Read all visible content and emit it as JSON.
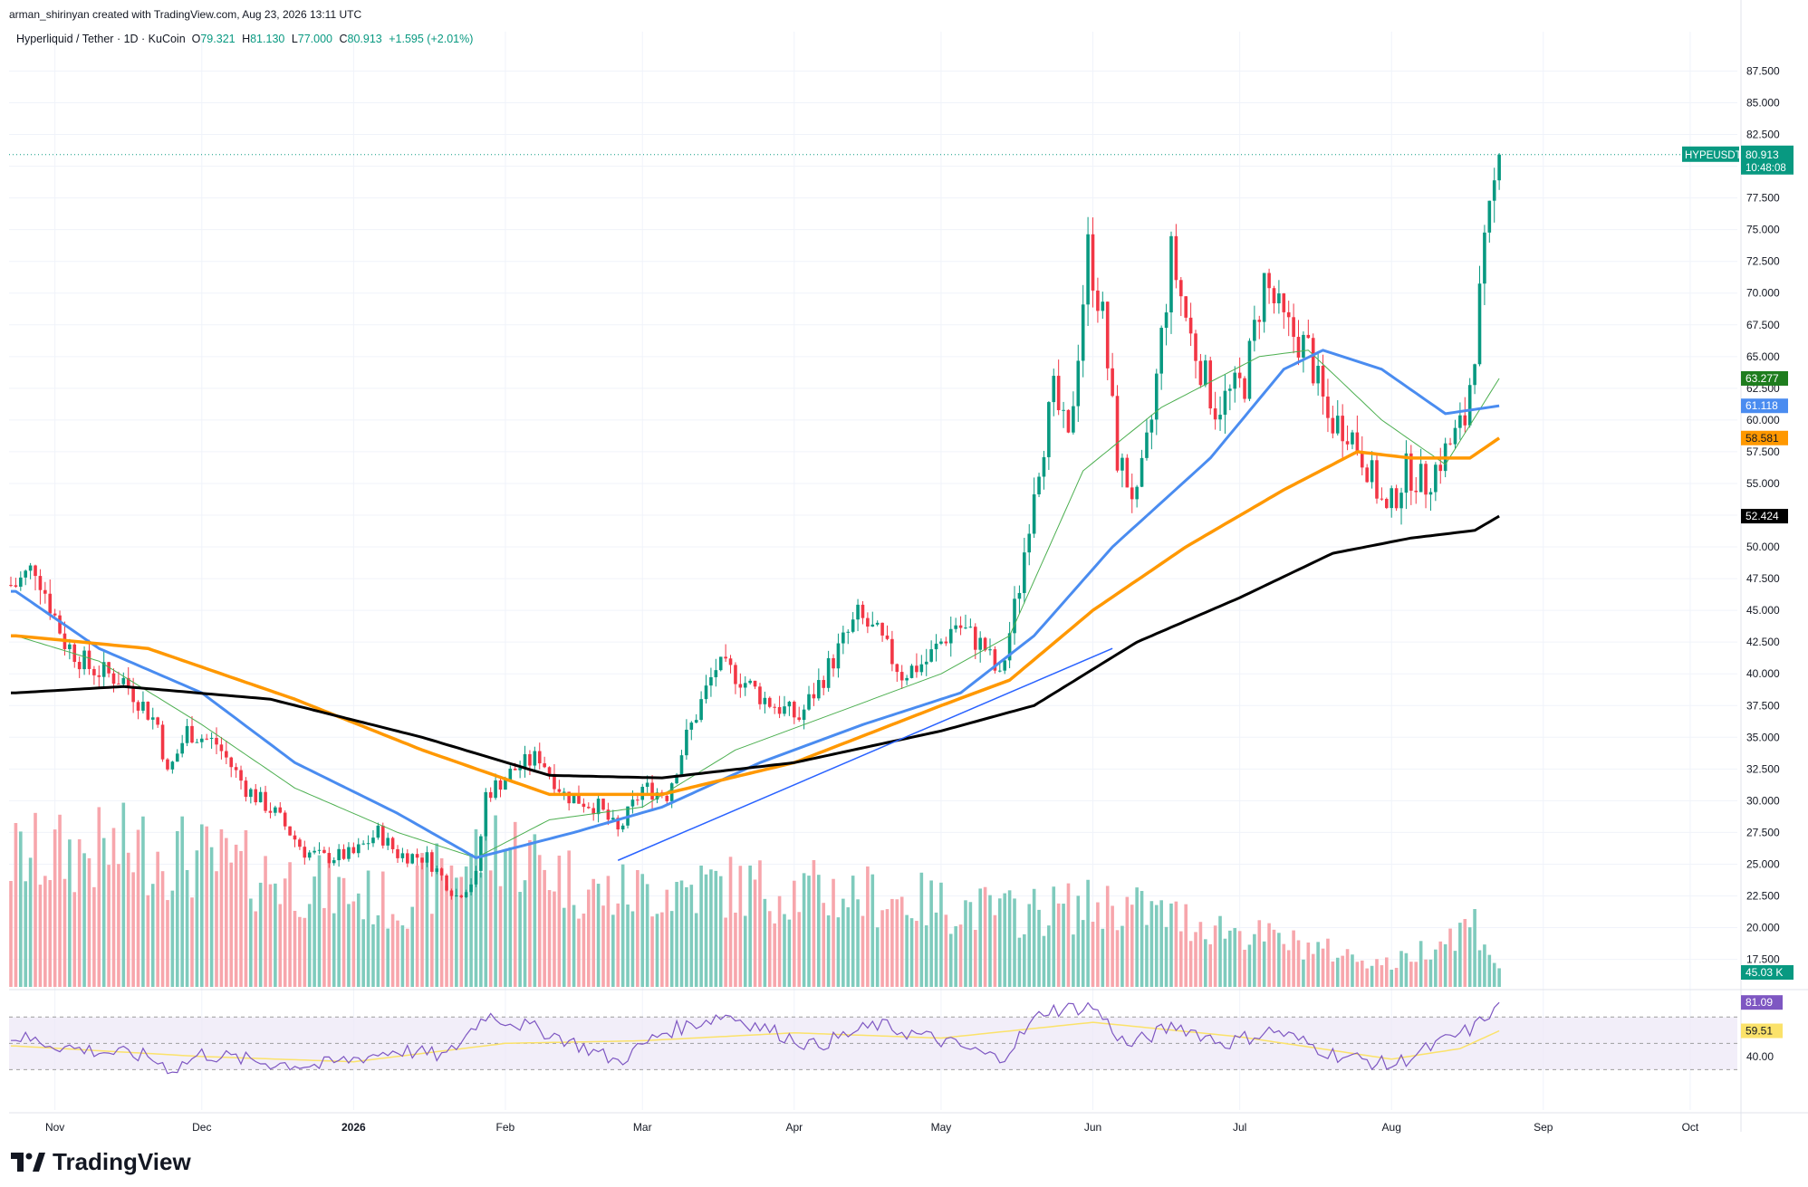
{
  "header": {
    "credit": "arman_shirinyan created with TradingView.com, Aug 23, 2026 13:11 UTC",
    "symbol_line": "Hyperliquid / Tether · 1D · KuCoin",
    "open_label": "O",
    "open": "79.321",
    "high_label": "H",
    "high": "81.130",
    "low_label": "L",
    "low": "77.000",
    "close_label": "C",
    "close": "80.913",
    "change": "+1.595 (+2.01%)"
  },
  "brand": {
    "name": "TradingView",
    "icon": "tradingview-logo-icon"
  },
  "colors": {
    "up": "#089981",
    "down": "#f23645",
    "up_vol": "#7fcbbd",
    "down_vol": "#f7a6ac",
    "ma_thin": "#4caf50",
    "ma_blue": "#4a8cf0",
    "ma_orange": "#ff9800",
    "ma_black": "#000000",
    "rsi": "#7e57c2",
    "rsi_ma": "#fbe26a",
    "trendline": "#2962ff"
  },
  "chart_data": {
    "type": "line",
    "title": "Hyperliquid / Tether · 1D · KuCoin",
    "x_ticks": [
      "Nov",
      "Dec",
      "2026",
      "Feb",
      "Mar",
      "Apr",
      "May",
      "Jun",
      "Jul",
      "Aug",
      "Sep",
      "Oct"
    ],
    "y_ticks": [
      "87.500",
      "85.000",
      "82.500",
      "80.000",
      "77.500",
      "75.000",
      "72.500",
      "70.000",
      "67.500",
      "65.000",
      "62.500",
      "60.000",
      "57.500",
      "55.000",
      "52.500",
      "50.000",
      "47.500",
      "45.000",
      "42.500",
      "40.000",
      "37.500",
      "35.000",
      "32.500",
      "30.000",
      "27.500",
      "25.000",
      "22.500",
      "20.000",
      "17.500"
    ],
    "ylim": [
      16,
      90
    ],
    "grid": true,
    "price_path": [
      {
        "x": "2025-10-24",
        "y": 47.0
      },
      {
        "x": "2025-10-28",
        "y": 48.5
      },
      {
        "x": "2025-11-03",
        "y": 42.5
      },
      {
        "x": "2025-11-08",
        "y": 40.5
      },
      {
        "x": "2025-11-15",
        "y": 39.5
      },
      {
        "x": "2025-11-22",
        "y": 36.0
      },
      {
        "x": "2025-11-24",
        "y": 32.0
      },
      {
        "x": "2025-11-28",
        "y": 35.5
      },
      {
        "x": "2025-12-04",
        "y": 34.5
      },
      {
        "x": "2025-12-10",
        "y": 31.0
      },
      {
        "x": "2025-12-16",
        "y": 29.0
      },
      {
        "x": "2025-12-22",
        "y": 26.0
      },
      {
        "x": "2025-12-26",
        "y": 25.5
      },
      {
        "x": "2026-01-01",
        "y": 25.8
      },
      {
        "x": "2026-01-06",
        "y": 27.5
      },
      {
        "x": "2026-01-10",
        "y": 25.8
      },
      {
        "x": "2026-01-16",
        "y": 25.5
      },
      {
        "x": "2026-01-22",
        "y": 22.5
      },
      {
        "x": "2026-01-26",
        "y": 24.0
      },
      {
        "x": "2026-01-28",
        "y": 30.5
      },
      {
        "x": "2026-02-03",
        "y": 32.5
      },
      {
        "x": "2026-02-08",
        "y": 33.5
      },
      {
        "x": "2026-02-13",
        "y": 30.5
      },
      {
        "x": "2026-02-20",
        "y": 29.5
      },
      {
        "x": "2026-02-24",
        "y": 27.5
      },
      {
        "x": "2026-03-01",
        "y": 31.0
      },
      {
        "x": "2026-03-06",
        "y": 30.5
      },
      {
        "x": "2026-03-10",
        "y": 35.0
      },
      {
        "x": "2026-03-16",
        "y": 40.5
      },
      {
        "x": "2026-03-20",
        "y": 40.0
      },
      {
        "x": "2026-03-26",
        "y": 38.0
      },
      {
        "x": "2026-04-02",
        "y": 36.5
      },
      {
        "x": "2026-04-08",
        "y": 40.5
      },
      {
        "x": "2026-04-14",
        "y": 44.5
      },
      {
        "x": "2026-04-18",
        "y": 43.0
      },
      {
        "x": "2026-04-23",
        "y": 40.0
      },
      {
        "x": "2026-04-28",
        "y": 41.0
      },
      {
        "x": "2026-05-04",
        "y": 44.0
      },
      {
        "x": "2026-05-10",
        "y": 42.0
      },
      {
        "x": "2026-05-13",
        "y": 39.5
      },
      {
        "x": "2026-05-17",
        "y": 47.0
      },
      {
        "x": "2026-05-20",
        "y": 55.0
      },
      {
        "x": "2026-05-24",
        "y": 62.0
      },
      {
        "x": "2026-05-27",
        "y": 58.0
      },
      {
        "x": "2026-05-31",
        "y": 73.5
      },
      {
        "x": "2026-06-03",
        "y": 68.0
      },
      {
        "x": "2026-06-06",
        "y": 57.0
      },
      {
        "x": "2026-06-10",
        "y": 53.5
      },
      {
        "x": "2026-06-13",
        "y": 60.0
      },
      {
        "x": "2026-06-17",
        "y": 73.0
      },
      {
        "x": "2026-06-21",
        "y": 66.5
      },
      {
        "x": "2026-06-26",
        "y": 61.0
      },
      {
        "x": "2026-07-02",
        "y": 63.0
      },
      {
        "x": "2026-07-06",
        "y": 71.0
      },
      {
        "x": "2026-07-10",
        "y": 67.5
      },
      {
        "x": "2026-07-15",
        "y": 65.5
      },
      {
        "x": "2026-07-19",
        "y": 60.0
      },
      {
        "x": "2026-07-23",
        "y": 59.5
      },
      {
        "x": "2026-07-27",
        "y": 56.5
      },
      {
        "x": "2026-07-31",
        "y": 52.5
      },
      {
        "x": "2026-08-04",
        "y": 56.0
      },
      {
        "x": "2026-08-08",
        "y": 55.0
      },
      {
        "x": "2026-08-12",
        "y": 57.5
      },
      {
        "x": "2026-08-16",
        "y": 60.0
      },
      {
        "x": "2026-08-18",
        "y": 66.0
      },
      {
        "x": "2026-08-20",
        "y": 73.0
      },
      {
        "x": "2026-08-23",
        "y": 80.913
      }
    ],
    "series": [
      {
        "values": [
          {
            "x": "2025-10-24",
            "y": 43.0
          },
          {
            "x": "2025-11-10",
            "y": 41.0
          },
          {
            "x": "2025-12-01",
            "y": 36.0
          },
          {
            "x": "2025-12-20",
            "y": 31.0
          },
          {
            "x": "2026-01-10",
            "y": 27.5
          },
          {
            "x": "2026-01-26",
            "y": 25.5
          },
          {
            "x": "2026-02-10",
            "y": 28.5
          },
          {
            "x": "2026-03-01",
            "y": 29.5
          },
          {
            "x": "2026-03-20",
            "y": 34.0
          },
          {
            "x": "2026-04-10",
            "y": 37.0
          },
          {
            "x": "2026-05-01",
            "y": 40.0
          },
          {
            "x": "2026-05-15",
            "y": 43.0
          },
          {
            "x": "2026-05-30",
            "y": 56.0
          },
          {
            "x": "2026-06-15",
            "y": 61.0
          },
          {
            "x": "2026-07-05",
            "y": 65.0
          },
          {
            "x": "2026-07-15",
            "y": 65.5
          },
          {
            "x": "2026-07-30",
            "y": 60.0
          },
          {
            "x": "2026-08-12",
            "y": 56.5
          },
          {
            "x": "2026-08-23",
            "y": 63.277
          }
        ]
      },
      {
        "values": [
          {
            "x": "2025-10-24",
            "y": 46.5
          },
          {
            "x": "2025-11-10",
            "y": 42.0
          },
          {
            "x": "2025-12-01",
            "y": 38.5
          },
          {
            "x": "2025-12-20",
            "y": 33.0
          },
          {
            "x": "2026-01-10",
            "y": 29.0
          },
          {
            "x": "2026-01-26",
            "y": 25.5
          },
          {
            "x": "2026-02-15",
            "y": 27.5
          },
          {
            "x": "2026-03-05",
            "y": 29.5
          },
          {
            "x": "2026-03-25",
            "y": 33.0
          },
          {
            "x": "2026-04-15",
            "y": 36.0
          },
          {
            "x": "2026-05-05",
            "y": 38.5
          },
          {
            "x": "2026-05-20",
            "y": 43.0
          },
          {
            "x": "2026-06-05",
            "y": 50.0
          },
          {
            "x": "2026-06-25",
            "y": 57.0
          },
          {
            "x": "2026-07-10",
            "y": 64.0
          },
          {
            "x": "2026-07-18",
            "y": 65.5
          },
          {
            "x": "2026-07-30",
            "y": 64.0
          },
          {
            "x": "2026-08-12",
            "y": 60.5
          },
          {
            "x": "2026-08-23",
            "y": 61.118
          }
        ]
      },
      {
        "values": [
          {
            "x": "2025-10-24",
            "y": 43.0
          },
          {
            "x": "2025-11-20",
            "y": 42.0
          },
          {
            "x": "2025-12-20",
            "y": 38.0
          },
          {
            "x": "2026-01-15",
            "y": 34.0
          },
          {
            "x": "2026-02-10",
            "y": 30.5
          },
          {
            "x": "2026-03-05",
            "y": 30.5
          },
          {
            "x": "2026-04-01",
            "y": 33.0
          },
          {
            "x": "2026-05-01",
            "y": 37.5
          },
          {
            "x": "2026-05-15",
            "y": 39.5
          },
          {
            "x": "2026-06-01",
            "y": 45.0
          },
          {
            "x": "2026-06-20",
            "y": 50.0
          },
          {
            "x": "2026-07-10",
            "y": 54.5
          },
          {
            "x": "2026-07-25",
            "y": 57.5
          },
          {
            "x": "2026-08-05",
            "y": 57.0
          },
          {
            "x": "2026-08-17",
            "y": 57.0
          },
          {
            "x": "2026-08-23",
            "y": 58.581
          }
        ]
      },
      {
        "values": [
          {
            "x": "2025-10-24",
            "y": 38.5
          },
          {
            "x": "2025-11-15",
            "y": 39.0
          },
          {
            "x": "2025-12-15",
            "y": 38.0
          },
          {
            "x": "2026-01-15",
            "y": 35.0
          },
          {
            "x": "2026-02-10",
            "y": 32.0
          },
          {
            "x": "2026-03-05",
            "y": 31.8
          },
          {
            "x": "2026-04-01",
            "y": 33.0
          },
          {
            "x": "2026-05-01",
            "y": 35.5
          },
          {
            "x": "2026-05-20",
            "y": 37.5
          },
          {
            "x": "2026-06-10",
            "y": 42.5
          },
          {
            "x": "2026-07-01",
            "y": 46.0
          },
          {
            "x": "2026-07-20",
            "y": 49.5
          },
          {
            "x": "2026-08-05",
            "y": 50.7
          },
          {
            "x": "2026-08-18",
            "y": 51.3
          },
          {
            "x": "2026-08-23",
            "y": 52.424
          }
        ]
      }
    ],
    "trendline": [
      {
        "x": "2026-02-24",
        "y": 25.3
      },
      {
        "x": "2026-06-05",
        "y": 42.0
      }
    ],
    "last_price_label": {
      "symbol": "HYPEUSDT",
      "price": "80.913",
      "countdown": "10:48:08"
    },
    "axis_labels": [
      {
        "value": "63.277",
        "color": "#1e7d1e",
        "text_color": "#ffffff"
      },
      {
        "value": "61.118",
        "color": "#4a8cf0",
        "text_color": "#ffffff"
      },
      {
        "value": "58.581",
        "color": "#ff9800",
        "text_color": "#131722"
      },
      {
        "value": "52.424",
        "color": "#000000",
        "text_color": "#ffffff"
      }
    ],
    "volume": {
      "last_label": "45.03 K",
      "profile": [
        {
          "x": "2025-10-24",
          "v": 0.7
        },
        {
          "x": "2025-11-20",
          "v": 0.75
        },
        {
          "x": "2025-12-15",
          "v": 0.6
        },
        {
          "x": "2026-01-10",
          "v": 0.45
        },
        {
          "x": "2026-01-30",
          "v": 0.8
        },
        {
          "x": "2026-02-20",
          "v": 0.5
        },
        {
          "x": "2026-03-15",
          "v": 0.55
        },
        {
          "x": "2026-04-15",
          "v": 0.5
        },
        {
          "x": "2026-05-15",
          "v": 0.4
        },
        {
          "x": "2026-06-05",
          "v": 0.45
        },
        {
          "x": "2026-07-01",
          "v": 0.3
        },
        {
          "x": "2026-08-01",
          "v": 0.12
        },
        {
          "x": "2026-08-18",
          "v": 0.35
        },
        {
          "x": "2026-08-23",
          "v": 0.1
        }
      ]
    },
    "rsi": {
      "value_label": "81.09",
      "ma_label": "59.51",
      "level_label": "40.00",
      "bands": [
        70,
        50,
        30
      ],
      "ylim": [
        20,
        90
      ],
      "path": [
        {
          "x": "2025-10-24",
          "y": 55
        },
        {
          "x": "2025-11-05",
          "y": 46
        },
        {
          "x": "2025-11-20",
          "y": 40
        },
        {
          "x": "2025-11-25",
          "y": 30
        },
        {
          "x": "2025-12-01",
          "y": 42
        },
        {
          "x": "2025-12-15",
          "y": 35
        },
        {
          "x": "2025-12-25",
          "y": 33
        },
        {
          "x": "2026-01-10",
          "y": 45
        },
        {
          "x": "2026-01-20",
          "y": 40
        },
        {
          "x": "2026-01-28",
          "y": 72
        },
        {
          "x": "2026-02-10",
          "y": 58
        },
        {
          "x": "2026-02-24",
          "y": 36
        },
        {
          "x": "2026-03-05",
          "y": 58
        },
        {
          "x": "2026-03-18",
          "y": 72
        },
        {
          "x": "2026-04-05",
          "y": 48
        },
        {
          "x": "2026-04-18",
          "y": 64
        },
        {
          "x": "2026-05-01",
          "y": 52
        },
        {
          "x": "2026-05-13",
          "y": 38
        },
        {
          "x": "2026-05-22",
          "y": 75
        },
        {
          "x": "2026-06-01",
          "y": 78
        },
        {
          "x": "2026-06-08",
          "y": 48
        },
        {
          "x": "2026-06-18",
          "y": 64
        },
        {
          "x": "2026-06-28",
          "y": 50
        },
        {
          "x": "2026-07-08",
          "y": 60
        },
        {
          "x": "2026-07-20",
          "y": 42
        },
        {
          "x": "2026-08-01",
          "y": 33
        },
        {
          "x": "2026-08-12",
          "y": 52
        },
        {
          "x": "2026-08-18",
          "y": 62
        },
        {
          "x": "2026-08-23",
          "y": 81.09
        }
      ],
      "ma_path": [
        {
          "x": "2025-10-24",
          "y": 48
        },
        {
          "x": "2025-12-01",
          "y": 40
        },
        {
          "x": "2026-01-01",
          "y": 36
        },
        {
          "x": "2026-02-01",
          "y": 50
        },
        {
          "x": "2026-03-01",
          "y": 52
        },
        {
          "x": "2026-04-01",
          "y": 58
        },
        {
          "x": "2026-05-01",
          "y": 54
        },
        {
          "x": "2026-06-01",
          "y": 66
        },
        {
          "x": "2026-07-01",
          "y": 55
        },
        {
          "x": "2026-08-01",
          "y": 38
        },
        {
          "x": "2026-08-15",
          "y": 46
        },
        {
          "x": "2026-08-23",
          "y": 59.51
        }
      ]
    }
  }
}
